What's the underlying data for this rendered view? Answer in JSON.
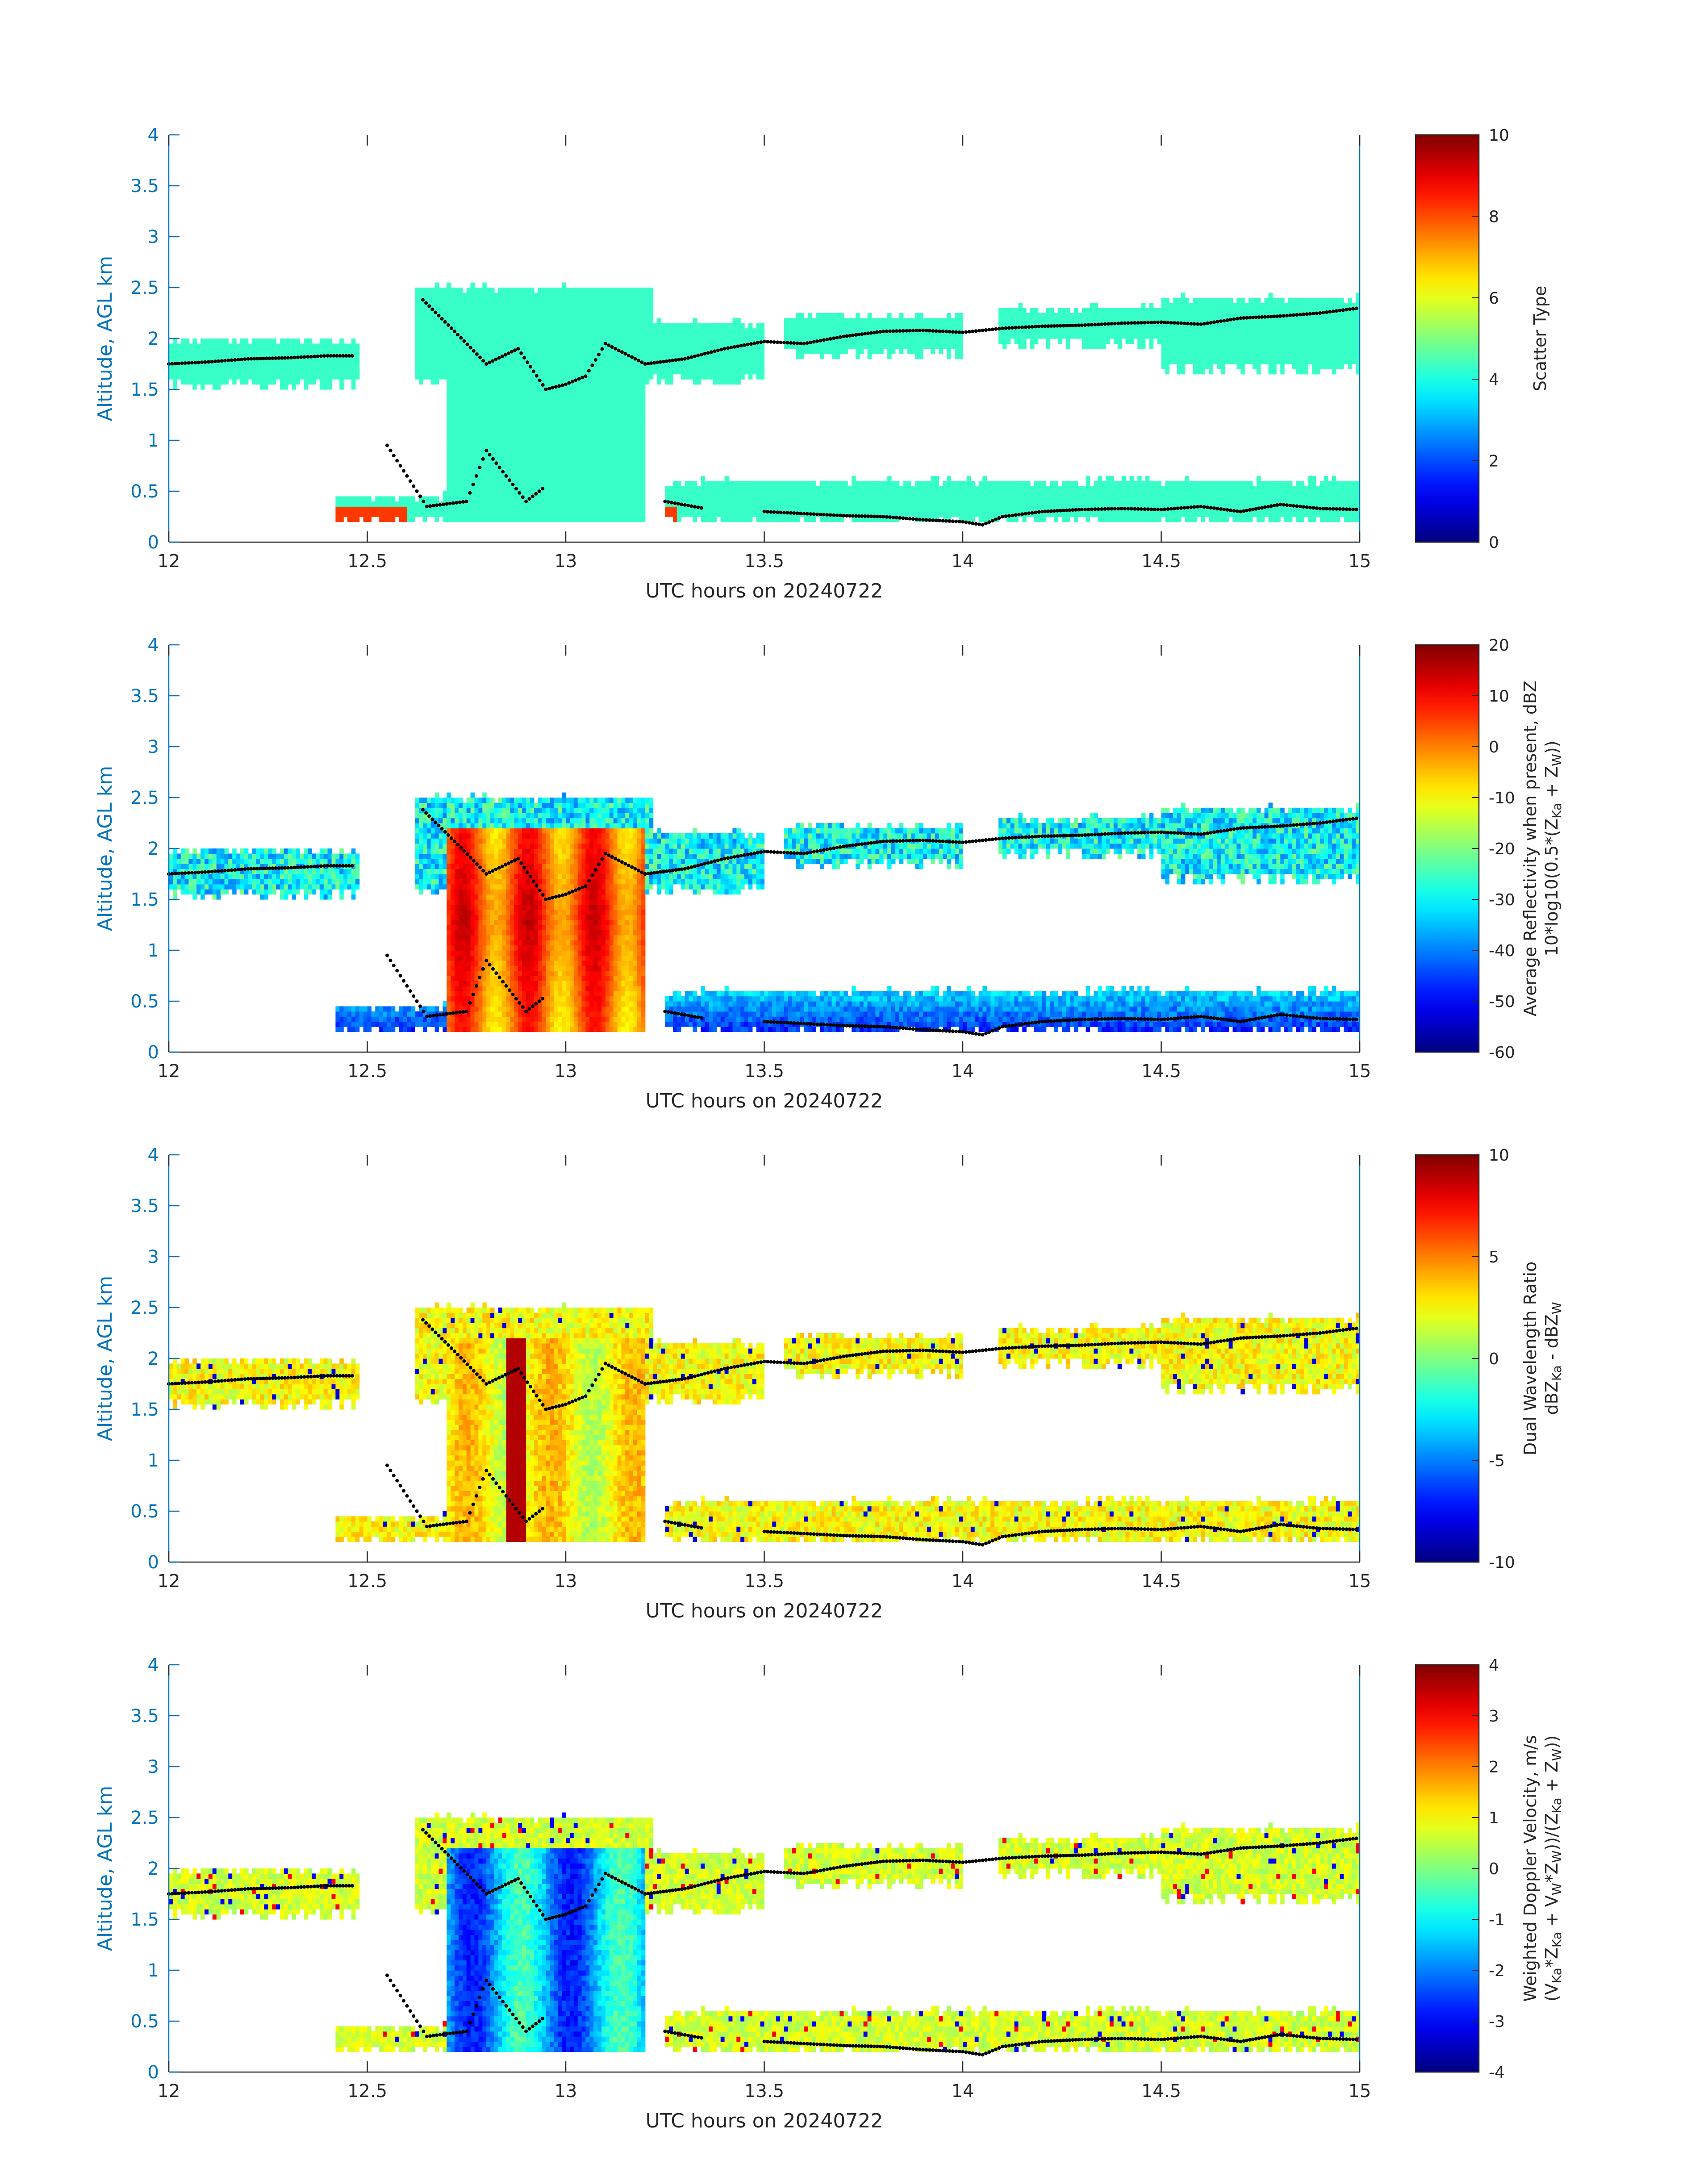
{
  "chart_data": [
    {
      "type": "heatmap",
      "xlabel": "UTC hours on 20240722",
      "ylabel": "Altitude, AGL km",
      "xlim": [
        12,
        15
      ],
      "ylim": [
        0,
        4
      ],
      "xticks": [
        "12",
        "12.5",
        "13",
        "13.5",
        "14",
        "14.5",
        "15"
      ],
      "yticks": [
        "0",
        "0.5",
        "1",
        "1.5",
        "2",
        "2.5",
        "3",
        "3.5",
        "4"
      ],
      "colorbar": {
        "label": "Scatter Type",
        "range": [
          0,
          10
        ],
        "ticks": [
          "0",
          "2",
          "4",
          "6",
          "8",
          "10"
        ]
      },
      "dominant_value": 4.3,
      "field": "scatter"
    },
    {
      "type": "heatmap",
      "xlabel": "UTC hours on 20240722",
      "ylabel": "Altitude, AGL km",
      "xlim": [
        12,
        15
      ],
      "ylim": [
        0,
        4
      ],
      "xticks": [
        "12",
        "12.5",
        "13",
        "13.5",
        "14",
        "14.5",
        "15"
      ],
      "yticks": [
        "0",
        "0.5",
        "1",
        "1.5",
        "2",
        "2.5",
        "3",
        "3.5",
        "4"
      ],
      "colorbar": {
        "label_line1": "Average Reflectivity when present, dBZ",
        "label_line2_a": "10*log10(0.5*(Z",
        "label_line2_b": "Ka",
        "label_line2_c": " + Z",
        "label_line2_d": "W",
        "label_line2_e": "))",
        "range": [
          -60,
          20
        ],
        "ticks": [
          "-60",
          "-50",
          "-40",
          "-30",
          "-20",
          "-10",
          "0",
          "10",
          "20"
        ]
      },
      "field": "refl"
    },
    {
      "type": "heatmap",
      "xlabel": "UTC hours on 20240722",
      "ylabel": "Altitude, AGL km",
      "xlim": [
        12,
        15
      ],
      "ylim": [
        0,
        4
      ],
      "xticks": [
        "12",
        "12.5",
        "13",
        "13.5",
        "14",
        "14.5",
        "15"
      ],
      "yticks": [
        "0",
        "0.5",
        "1",
        "1.5",
        "2",
        "2.5",
        "3",
        "3.5",
        "4"
      ],
      "colorbar": {
        "label_line1": "Dual Wavelength Ratio",
        "label_line2_a": "dBZ",
        "label_line2_b": "Ka",
        "label_line2_c": " - dBZ",
        "label_line2_d": "W",
        "label_line2_e": "",
        "range": [
          -10,
          10
        ],
        "ticks": [
          "-10",
          "-5",
          "0",
          "5",
          "10"
        ]
      },
      "field": "dwr"
    },
    {
      "type": "heatmap",
      "xlabel": "UTC hours on 20240722",
      "ylabel": "Altitude, AGL km",
      "xlim": [
        12,
        15
      ],
      "ylim": [
        0,
        4
      ],
      "xticks": [
        "12",
        "12.5",
        "13",
        "13.5",
        "14",
        "14.5",
        "15"
      ],
      "yticks": [
        "0",
        "0.5",
        "1",
        "1.5",
        "2",
        "2.5",
        "3",
        "3.5",
        "4"
      ],
      "colorbar": {
        "label_line1": "Weighted Doppler Velocity, m/s",
        "label_line2_a": "(V",
        "label_line2_b": "Ka",
        "label_line2_c": "*Z",
        "label_line2_d": "Ka",
        "label_line2_e": " + V",
        "label_line2_f": "W",
        "label_line2_g": "*Z",
        "label_line2_h": "W",
        "label_line2_i": "))/(Z",
        "label_line2_j": "Ka",
        "label_line2_k": " + Z",
        "label_line2_l": "W",
        "label_line2_m": "))",
        "range": [
          -4,
          4
        ],
        "ticks": [
          "-4",
          "-3",
          "-2",
          "-1",
          "0",
          "1",
          "2",
          "3",
          "4"
        ]
      },
      "field": "vel"
    }
  ],
  "cloud_layers": {
    "upper_segments": [
      {
        "t0": 12.0,
        "t1": 12.48,
        "base": 1.55,
        "top": 1.98
      },
      {
        "t0": 12.62,
        "t1": 13.22,
        "base": 1.6,
        "top": 2.5
      },
      {
        "t0": 13.22,
        "t1": 13.5,
        "base": 1.6,
        "top": 2.15
      },
      {
        "t0": 13.55,
        "t1": 14.0,
        "base": 1.85,
        "top": 2.22
      },
      {
        "t0": 14.09,
        "t1": 14.5,
        "base": 1.95,
        "top": 2.3
      },
      {
        "t0": 14.5,
        "t1": 15.0,
        "base": 1.7,
        "top": 2.4
      }
    ],
    "core": {
      "t0": 12.7,
      "t1": 13.2,
      "base": 0.2,
      "top": 2.2
    },
    "lower_segments": [
      {
        "t0": 12.42,
        "t1": 12.7,
        "base": 0.2,
        "top": 0.45
      },
      {
        "t0": 12.7,
        "t1": 12.85,
        "base": 0.2,
        "top": 1.0
      },
      {
        "t0": 13.25,
        "t1": 15.0,
        "base": 0.2,
        "top": 0.6
      }
    ],
    "boundary_dots": {
      "upper": [
        [
          12.0,
          1.75
        ],
        [
          12.1,
          1.77
        ],
        [
          12.2,
          1.8
        ],
        [
          12.3,
          1.81
        ],
        [
          12.4,
          1.83
        ],
        [
          12.47,
          1.83
        ],
        [
          12.64,
          2.38
        ],
        [
          12.72,
          2.07
        ],
        [
          12.8,
          1.75
        ],
        [
          12.88,
          1.9
        ],
        [
          12.95,
          1.5
        ],
        [
          13.0,
          1.55
        ],
        [
          13.05,
          1.63
        ],
        [
          13.1,
          1.95
        ],
        [
          13.2,
          1.75
        ],
        [
          13.3,
          1.8
        ],
        [
          13.4,
          1.9
        ],
        [
          13.5,
          1.97
        ],
        [
          13.6,
          1.95
        ],
        [
          13.7,
          2.02
        ],
        [
          13.8,
          2.07
        ],
        [
          13.9,
          2.08
        ],
        [
          14.0,
          2.06
        ],
        [
          14.1,
          2.1
        ],
        [
          14.2,
          2.12
        ],
        [
          14.3,
          2.13
        ],
        [
          14.4,
          2.15
        ],
        [
          14.5,
          2.16
        ],
        [
          14.6,
          2.14
        ],
        [
          14.7,
          2.2
        ],
        [
          14.8,
          2.22
        ],
        [
          14.9,
          2.25
        ],
        [
          15.0,
          2.3
        ]
      ],
      "lower": [
        [
          12.55,
          0.95
        ],
        [
          12.65,
          0.35
        ],
        [
          12.75,
          0.4
        ],
        [
          12.8,
          0.9
        ],
        [
          12.85,
          0.65
        ],
        [
          12.9,
          0.4
        ],
        [
          12.95,
          0.55
        ],
        [
          13.25,
          0.4
        ],
        [
          13.35,
          0.33
        ],
        [
          13.5,
          0.3
        ],
        [
          13.6,
          0.28
        ],
        [
          13.7,
          0.26
        ],
        [
          13.8,
          0.25
        ],
        [
          13.9,
          0.22
        ],
        [
          14.0,
          0.2
        ],
        [
          14.05,
          0.17
        ],
        [
          14.1,
          0.25
        ],
        [
          14.2,
          0.3
        ],
        [
          14.3,
          0.32
        ],
        [
          14.4,
          0.33
        ],
        [
          14.5,
          0.32
        ],
        [
          14.6,
          0.35
        ],
        [
          14.7,
          0.3
        ],
        [
          14.8,
          0.37
        ],
        [
          14.9,
          0.33
        ],
        [
          15.0,
          0.32
        ]
      ]
    }
  }
}
